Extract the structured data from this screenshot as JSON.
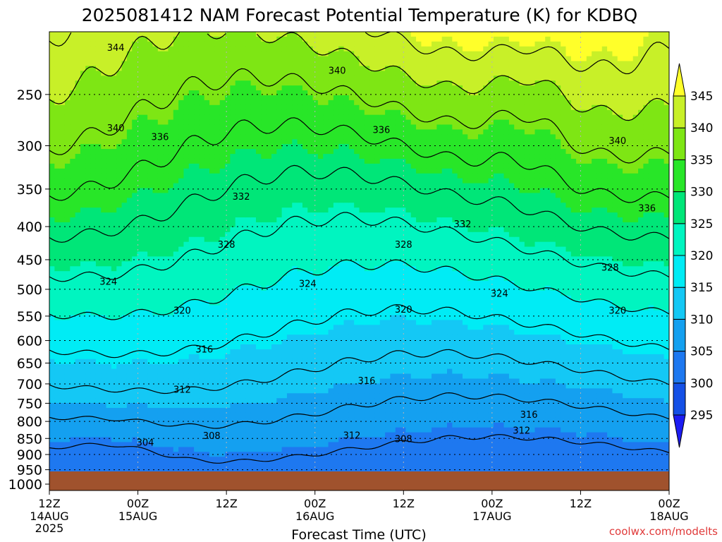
{
  "chart_data": {
    "type": "heatmap",
    "title": "2025081412 NAM Forecast Potential Temperature (K) for KDBQ",
    "xlabel": "Forecast Time (UTC)",
    "ylabel": "",
    "y_scale": "log-pressure",
    "y_axis_inverted": true,
    "y_range_hPa": [
      1000,
      200
    ],
    "x_range": [
      "2025-08-14T12:00Z",
      "2025-08-18T00:00Z"
    ],
    "y_ticks": [
      250,
      300,
      350,
      400,
      450,
      500,
      550,
      600,
      650,
      700,
      750,
      800,
      850,
      900,
      950,
      1000
    ],
    "x_ticks": [
      {
        "time": "12Z",
        "date": "14AUG",
        "year": "2025"
      },
      {
        "time": "00Z",
        "date": "15AUG",
        "year": ""
      },
      {
        "time": "12Z",
        "date": "",
        "year": ""
      },
      {
        "time": "00Z",
        "date": "16AUG",
        "year": ""
      },
      {
        "time": "12Z",
        "date": "",
        "year": ""
      },
      {
        "time": "00Z",
        "date": "17AUG",
        "year": ""
      },
      {
        "time": "12Z",
        "date": "",
        "year": ""
      },
      {
        "time": "00Z",
        "date": "18AUG",
        "year": ""
      }
    ],
    "grid": true,
    "colorbar": {
      "placement": "right",
      "levels": [
        295,
        300,
        305,
        310,
        315,
        320,
        325,
        330,
        335,
        340,
        345
      ],
      "colors": [
        "#1c1cf2",
        "#1450e6",
        "#1e78f0",
        "#14a0f0",
        "#14c8f5",
        "#00ecf5",
        "#00f5c0",
        "#00e678",
        "#28e628",
        "#7ee614",
        "#c8f028",
        "#ffff2a"
      ],
      "extend": "both"
    },
    "contour_interval": 4,
    "contour_labels": [
      {
        "value": "344",
        "time": "2025-08-14T21:00Z",
        "pressure": 212
      },
      {
        "value": "340",
        "time": "2025-08-16T03:00Z",
        "pressure": 230
      },
      {
        "value": "340",
        "time": "2025-08-14T21:00Z",
        "pressure": 282
      },
      {
        "value": "336",
        "time": "2025-08-15T03:00Z",
        "pressure": 291
      },
      {
        "value": "336",
        "time": "2025-08-16T09:00Z",
        "pressure": 284
      },
      {
        "value": "340",
        "time": "2025-08-17T17:00Z",
        "pressure": 295
      },
      {
        "value": "332",
        "time": "2025-08-15T14:00Z",
        "pressure": 360
      },
      {
        "value": "336",
        "time": "2025-08-17T21:00Z",
        "pressure": 375
      },
      {
        "value": "332",
        "time": "2025-08-16T20:00Z",
        "pressure": 397
      },
      {
        "value": "328",
        "time": "2025-08-15T12:00Z",
        "pressure": 427
      },
      {
        "value": "328",
        "time": "2025-08-16T12:00Z",
        "pressure": 427
      },
      {
        "value": "328",
        "time": "2025-08-17T16:00Z",
        "pressure": 463
      },
      {
        "value": "324",
        "time": "2025-08-14T20:00Z",
        "pressure": 487
      },
      {
        "value": "324",
        "time": "2025-08-15T23:00Z",
        "pressure": 491
      },
      {
        "value": "324",
        "time": "2025-08-17T01:00Z",
        "pressure": 508
      },
      {
        "value": "320",
        "time": "2025-08-15T06:00Z",
        "pressure": 540
      },
      {
        "value": "320",
        "time": "2025-08-16T12:00Z",
        "pressure": 538
      },
      {
        "value": "320",
        "time": "2025-08-17T17:00Z",
        "pressure": 540
      },
      {
        "value": "316",
        "time": "2025-08-15T09:00Z",
        "pressure": 620
      },
      {
        "value": "316",
        "time": "2025-08-16T07:00Z",
        "pressure": 693
      },
      {
        "value": "316",
        "time": "2025-08-17T05:00Z",
        "pressure": 782
      },
      {
        "value": "312",
        "time": "2025-08-15T06:00Z",
        "pressure": 715
      },
      {
        "value": "312",
        "time": "2025-08-16T05:00Z",
        "pressure": 842
      },
      {
        "value": "312",
        "time": "2025-08-17T04:00Z",
        "pressure": 827
      },
      {
        "value": "308",
        "time": "2025-08-15T10:00Z",
        "pressure": 843
      },
      {
        "value": "308",
        "time": "2025-08-16T12:00Z",
        "pressure": 853
      },
      {
        "value": "304",
        "time": "2025-08-15T01:00Z",
        "pressure": 863
      }
    ]
  },
  "credit": "coolwx.com/modelts"
}
